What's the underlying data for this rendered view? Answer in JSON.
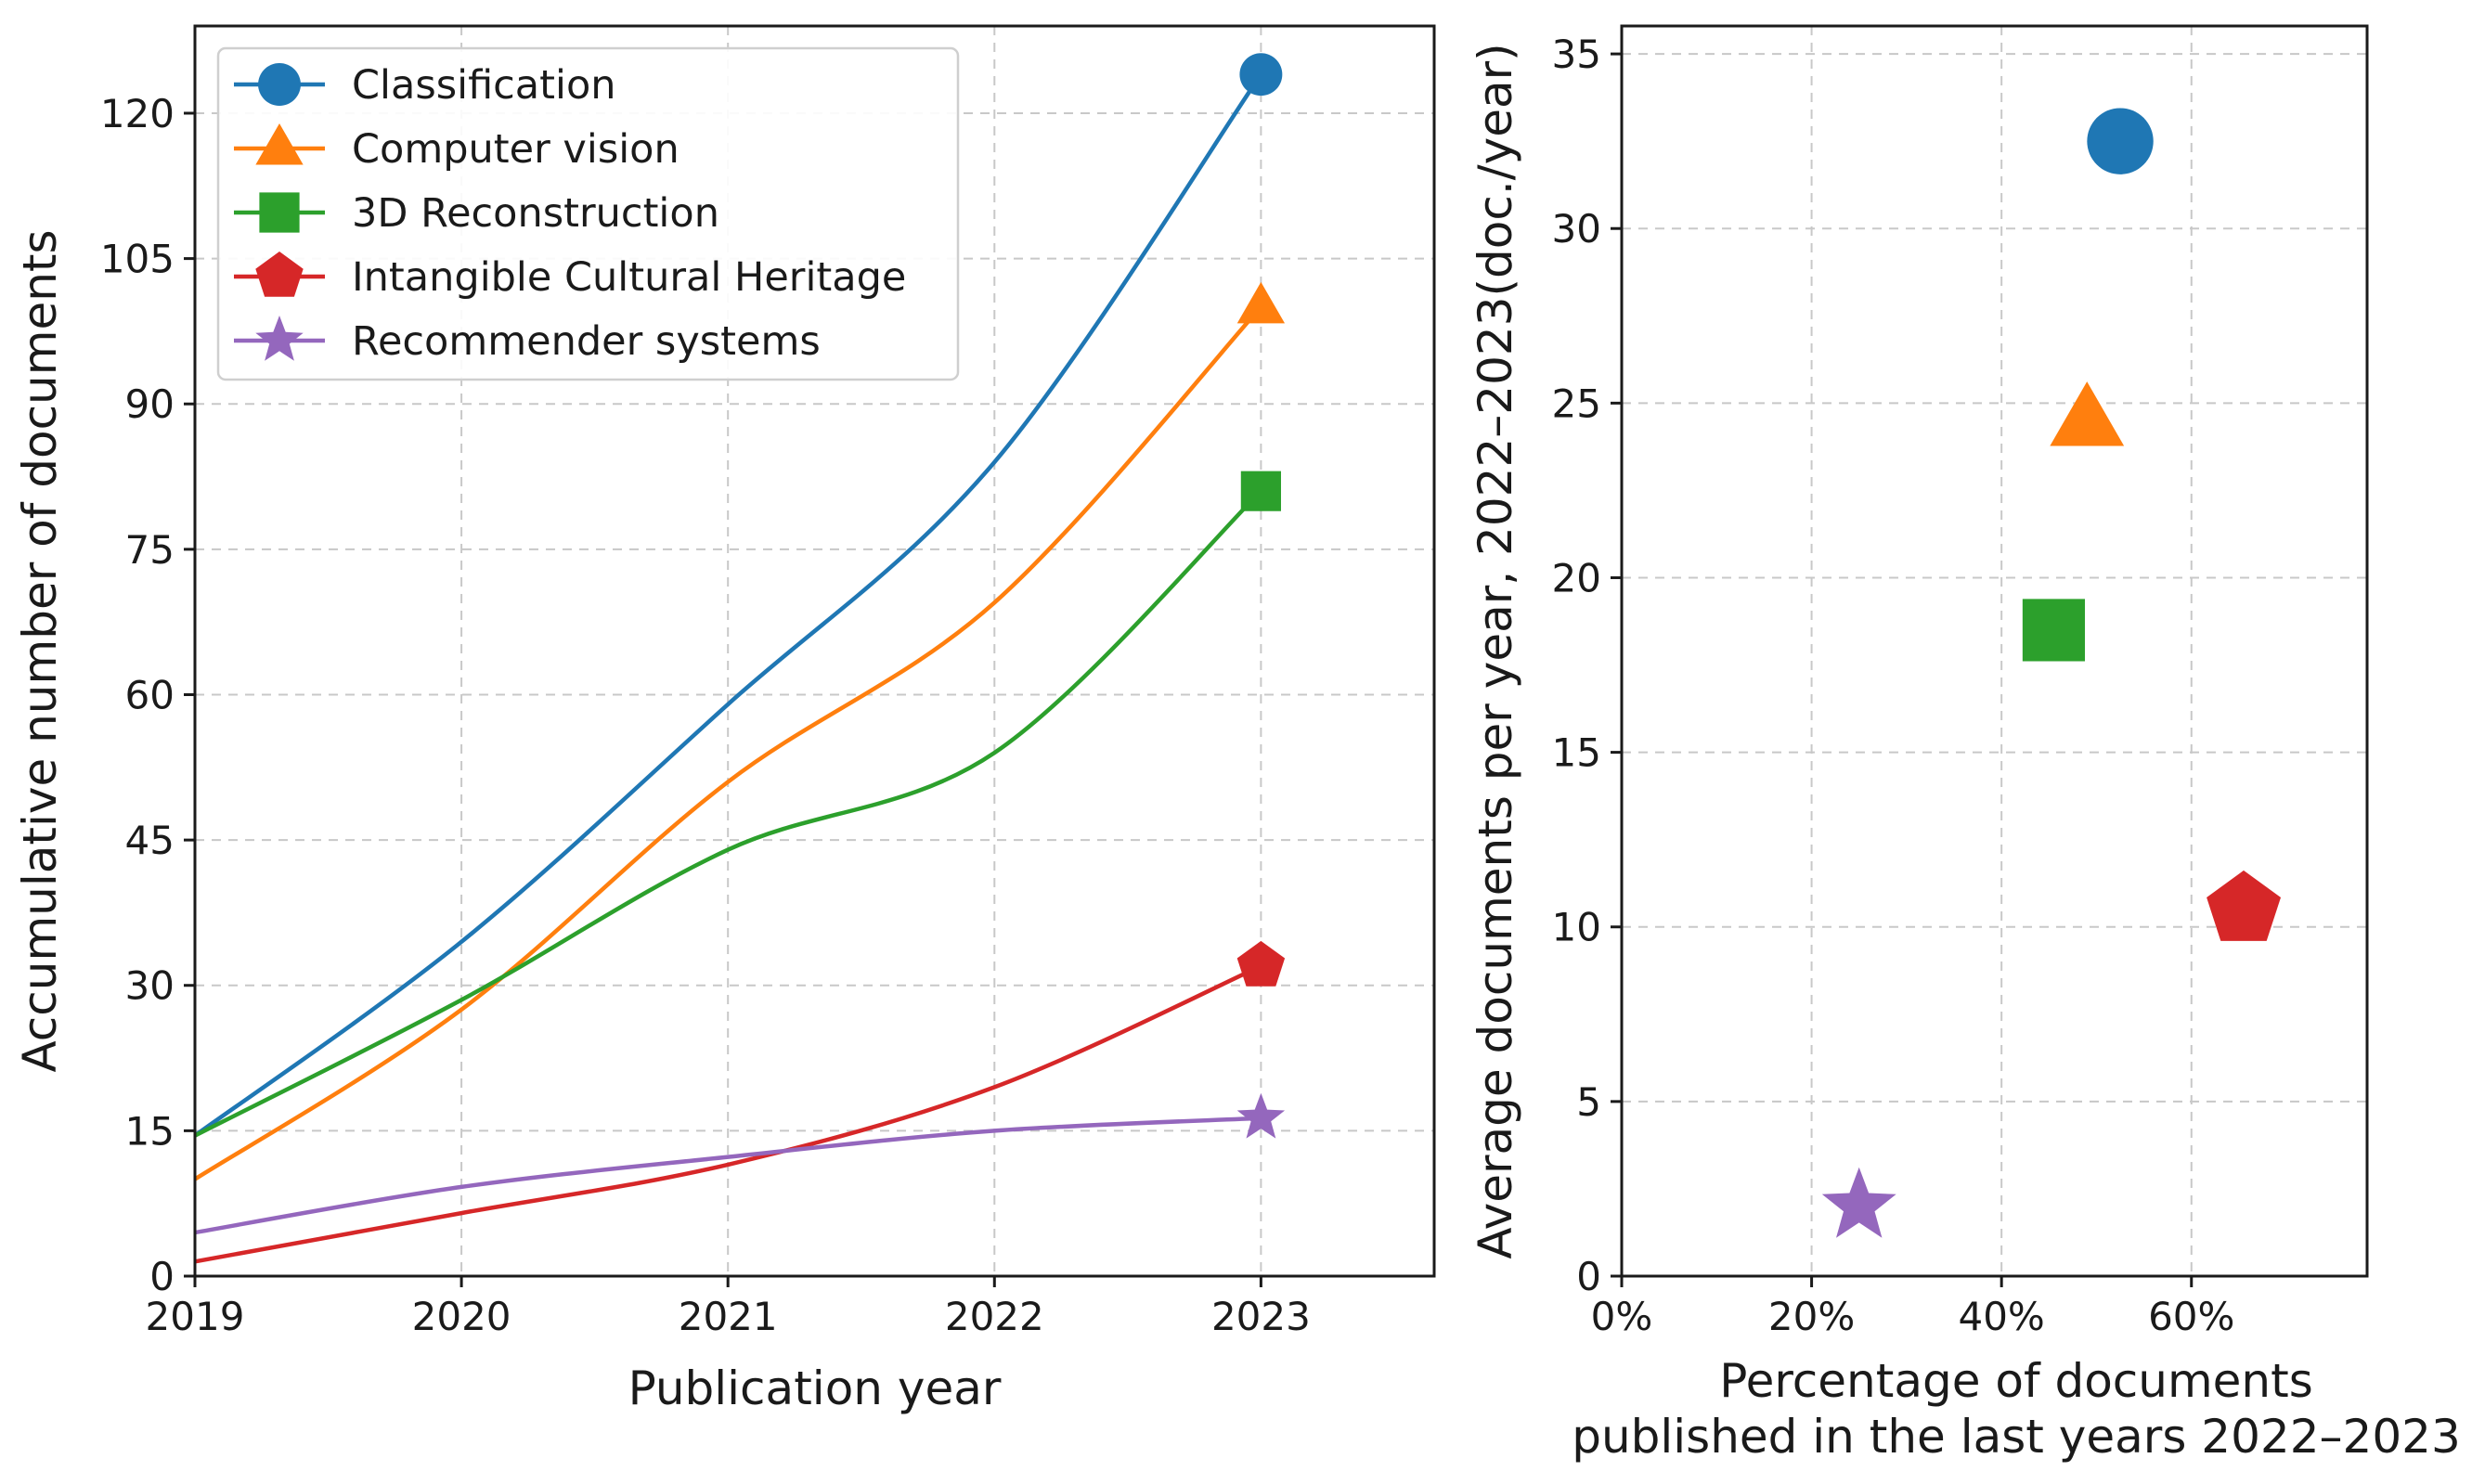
{
  "chart_data": [
    {
      "type": "line",
      "xlabel": "Publication year",
      "ylabel": "Accumulative number of documents",
      "xlim": [
        2019,
        2023.65
      ],
      "ylim": [
        0,
        129
      ],
      "x_ticks": [
        "2019",
        "2020",
        "2021",
        "2022",
        "2023"
      ],
      "y_ticks": [
        "0",
        "15",
        "30",
        "45",
        "60",
        "75",
        "90",
        "105",
        "120"
      ],
      "x": [
        2019,
        2020,
        2021,
        2022,
        2023
      ],
      "grid": true,
      "legend_position": "top-left",
      "series": [
        {
          "name": "Classification",
          "color": "#1f77b4",
          "marker": "circle",
          "values": [
            14.5,
            34.5,
            59,
            84,
            124
          ]
        },
        {
          "name": "Computer vision",
          "color": "#ff7f0e",
          "marker": "triangle",
          "values": [
            10,
            27.5,
            51,
            69.5,
            100
          ]
        },
        {
          "name": "3D Reconstruction",
          "color": "#2ca02c",
          "marker": "square",
          "values": [
            14.5,
            28.5,
            44,
            54,
            81
          ]
        },
        {
          "name": "Intangible Cultural Heritage",
          "color": "#d62728",
          "marker": "pentagon",
          "values": [
            1.5,
            6.5,
            11.5,
            19.5,
            32
          ]
        },
        {
          "name": "Recommender systems",
          "color": "#9467bd",
          "marker": "star",
          "values": [
            4.5,
            9.2,
            12.3,
            15,
            16.3
          ]
        }
      ]
    },
    {
      "type": "scatter",
      "xlabel": "Percentage of documents published in the last years 2022–2023",
      "xlabel_lines": [
        "Percentage of documents",
        "published in the last years 2022–2023"
      ],
      "ylabel": "Average documents per year, 2022–2023(doc./year)",
      "xlim": [
        0,
        78.5
      ],
      "ylim": [
        0,
        35.8
      ],
      "x_ticks": [
        "0%",
        "20%",
        "40%",
        "60%"
      ],
      "y_ticks": [
        "0",
        "5",
        "10",
        "15",
        "20",
        "25",
        "30",
        "35"
      ],
      "grid": true,
      "points": [
        {
          "name": "Classification",
          "x": 52.5,
          "y": 32.5,
          "color": "#1f77b4",
          "marker": "circle"
        },
        {
          "name": "Computer vision",
          "x": 49,
          "y": 24.5,
          "color": "#ff7f0e",
          "marker": "triangle"
        },
        {
          "name": "3D Reconstruction",
          "x": 45.5,
          "y": 18.5,
          "color": "#2ca02c",
          "marker": "square"
        },
        {
          "name": "Intangible Cultural Heritage",
          "x": 65.5,
          "y": 10.5,
          "color": "#d62728",
          "marker": "pentagon"
        },
        {
          "name": "Recommender systems",
          "x": 25,
          "y": 2,
          "color": "#9467bd",
          "marker": "star"
        }
      ]
    }
  ]
}
